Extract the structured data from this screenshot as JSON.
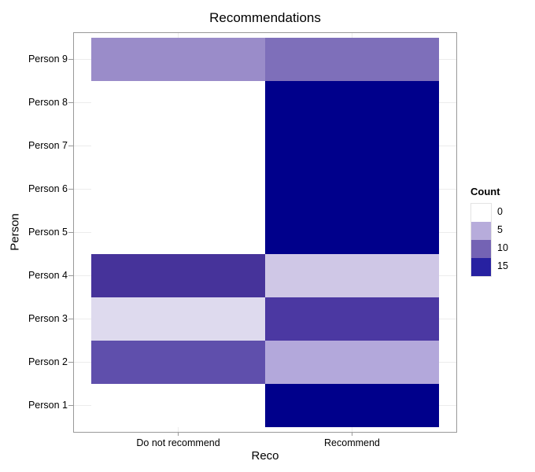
{
  "chart_data": {
    "type": "heatmap",
    "title": "Recommendations",
    "xlabel": "Reco",
    "ylabel": "Person",
    "x_categories": [
      "Do not recommend",
      "Recommend"
    ],
    "y_categories": [
      "Person 1",
      "Person 2",
      "Person 3",
      "Person 4",
      "Person 5",
      "Person 6",
      "Person 7",
      "Person 8",
      "Person 9"
    ],
    "rows": [
      {
        "person": "Person 1",
        "counts": [
          0,
          17
        ],
        "fills": [
          "#FFFFFF",
          "#00008B"
        ]
      },
      {
        "person": "Person 2",
        "counts": [
          11,
          5
        ],
        "fills": [
          "#5F4FAC",
          "#B3A8DB"
        ]
      },
      {
        "person": "Person 3",
        "counts": [
          2,
          13
        ],
        "fills": [
          "#DEDAEE",
          "#4B38A2"
        ]
      },
      {
        "person": "Person 4",
        "counts": [
          13,
          3
        ],
        "fills": [
          "#46339A",
          "#CFC7E6"
        ]
      },
      {
        "person": "Person 5",
        "counts": [
          0,
          17
        ],
        "fills": [
          "#FFFFFF",
          "#00008B"
        ]
      },
      {
        "person": "Person 6",
        "counts": [
          0,
          17
        ],
        "fills": [
          "#FFFFFF",
          "#00008B"
        ]
      },
      {
        "person": "Person 7",
        "counts": [
          0,
          17
        ],
        "fills": [
          "#FFFFFF",
          "#00008B"
        ]
      },
      {
        "person": "Person 8",
        "counts": [
          0,
          17
        ],
        "fills": [
          "#FFFFFF",
          "#00008B"
        ]
      },
      {
        "person": "Person 9",
        "counts": [
          7,
          9
        ],
        "fills": [
          "#9A8CC9",
          "#7E6FBA"
        ]
      }
    ],
    "legend": {
      "title": "Count",
      "position": "right",
      "entries": [
        {
          "label": "0",
          "color": "#FFFFFF"
        },
        {
          "label": "5",
          "color": "#B7ACDB"
        },
        {
          "label": "10",
          "color": "#7463B4"
        },
        {
          "label": "15",
          "color": "#2721A1"
        }
      ]
    },
    "scale": {
      "low": "#FFFFFF",
      "high": "#00008B",
      "domain": [
        0,
        17
      ]
    },
    "layout": {
      "grid": "major",
      "grid_color": "#ECECEC",
      "panel_border_color": "#999999",
      "background": "#FFFFFF"
    }
  }
}
